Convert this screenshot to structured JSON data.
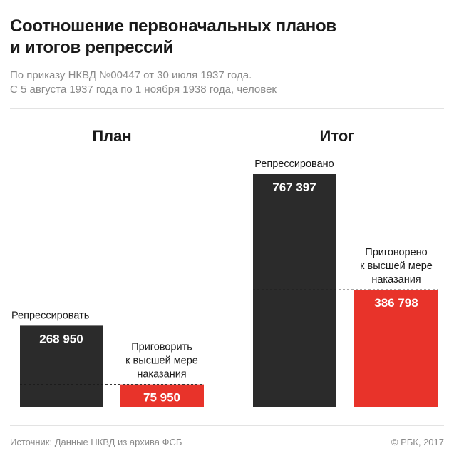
{
  "header": {
    "title_line1": "Соотношение первоначальных планов",
    "title_line2": "и итогов репрессий",
    "subtitle_line1": "По приказу НКВД №00447 от 30 июля 1937 года.",
    "subtitle_line2": "С 5 августа 1937 года по 1 ноября 1938 года, человек"
  },
  "footer": {
    "source": "Источник: Данные НКВД из архива ФСБ",
    "copyright": "© РБК, 2017"
  },
  "colors": {
    "dark": "#2b2b2b",
    "red": "#e8332a",
    "text": "#1a1a1a",
    "muted": "#8a8a8a"
  },
  "chart_data": [
    {
      "type": "bar",
      "title": "План",
      "categories": [
        "Репрессировать",
        "Приговорить к высшей мере наказания"
      ],
      "category_lines": [
        [
          "Репрессировать"
        ],
        [
          "Приговорить",
          "к высшей мере",
          "наказания"
        ]
      ],
      "values": [
        268950,
        75950
      ],
      "value_labels": [
        "268 950",
        "75 950"
      ],
      "colors": [
        "#2b2b2b",
        "#e8332a"
      ]
    },
    {
      "type": "bar",
      "title": "Итог",
      "categories": [
        "Репрессировано",
        "Приговорено к высшей мере наказания"
      ],
      "category_lines": [
        [
          "Репрессировано"
        ],
        [
          "Приговорено",
          "к высшей мере",
          "наказания"
        ]
      ],
      "values": [
        767397,
        386798
      ],
      "value_labels": [
        "767 397",
        "386 798"
      ],
      "colors": [
        "#2b2b2b",
        "#e8332a"
      ]
    }
  ]
}
